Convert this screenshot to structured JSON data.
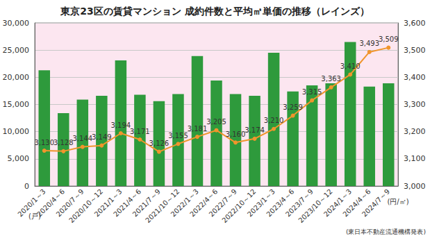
{
  "chart_data": {
    "type": "bar",
    "title": "東京23区の賃貸マンション 成約件数と平均㎡単価の推移（レインズ）",
    "categories": [
      "2020/1～3",
      "2020/4～6",
      "2020/7～9",
      "2020/10～12",
      "2021/1～3",
      "2021/4～6",
      "2021/7～9",
      "2021/10～12",
      "2022/1～3",
      "2022/4～6",
      "2022/7～9",
      "2022/10～12",
      "2023/1～3",
      "2023/4～6",
      "2023/7～9",
      "2023/10～12",
      "2024/1～3",
      "2024/4～6",
      "2024/7～9"
    ],
    "series": [
      {
        "type": "bar",
        "color": "#2e9a3c",
        "values": [
          21300,
          13400,
          15900,
          16600,
          23100,
          16800,
          15600,
          16900,
          23900,
          19400,
          16900,
          16600,
          24500,
          17400,
          18500,
          18900,
          26500,
          18300,
          18900
        ]
      },
      {
        "type": "line",
        "axis": "y2",
        "color": "#f0952c",
        "marker": "circle",
        "data_labels": true,
        "values": [
          3130,
          3128,
          3144,
          3149,
          3194,
          3171,
          3126,
          3155,
          3181,
          3205,
          3160,
          3174,
          3210,
          3259,
          3315,
          3363,
          3410,
          3493,
          3509
        ],
        "value_labels": [
          "3,130",
          "3,128",
          "3,144",
          "3,149",
          "3,194",
          "3,171",
          "3,126",
          "3,155",
          "3,181",
          "3,205",
          "3,160",
          "3,174",
          "3,210",
          "3,259",
          "3,315",
          "3,363",
          "3,410",
          "3,493",
          "3,509"
        ]
      }
    ],
    "ylim": [
      0,
      30000
    ],
    "yticks": [
      0,
      {
        "value": 5000,
        "label": "5,000"
      },
      {
        "value": 10000,
        "label": "10,000"
      },
      {
        "value": 15000,
        "label": "15,000"
      },
      {
        "value": 20000,
        "label": "20,000"
      },
      {
        "value": 25000,
        "label": "25,000"
      },
      {
        "value": 30000,
        "label": "30,000"
      }
    ],
    "y2lim": [
      3000,
      3600
    ],
    "y2ticks": [
      {
        "value": 3000,
        "label": "3,000"
      },
      {
        "value": 3100,
        "label": "3,100"
      },
      {
        "value": 3200,
        "label": "3,200"
      },
      {
        "value": 3300,
        "label": "3,300"
      },
      {
        "value": 3400,
        "label": "3,400"
      },
      {
        "value": 3500,
        "label": "3,500"
      },
      {
        "value": 3600,
        "label": "3,600"
      }
    ],
    "y_label": "(戸)",
    "y2_label": "(円/㎡)",
    "note": "(東日本不動産流通機構発表)",
    "grid": true
  }
}
